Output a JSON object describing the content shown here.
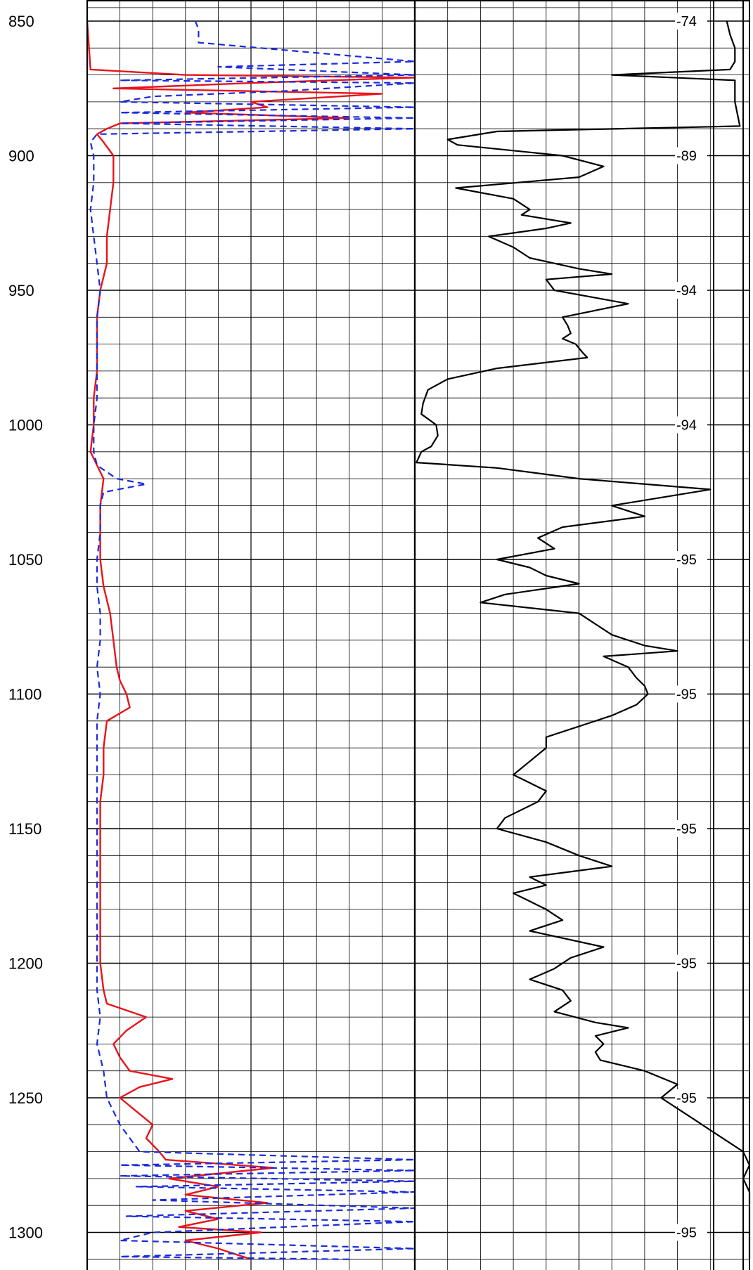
{
  "chart_data": {
    "type": "line",
    "title": "",
    "xlabel": "",
    "ylabel": "",
    "depth_range": [
      850,
      1310
    ],
    "depth_ticks": [
      "850",
      "900",
      "950",
      "1000",
      "1050",
      "1100",
      "1150",
      "1200",
      "1250",
      "1300"
    ],
    "colors": {
      "red_curve": "#e8141b",
      "blue_curve": "#1a2bdc",
      "black_curve": "#000000",
      "grid": "#000000"
    },
    "track1": {
      "grid_columns": 10,
      "series": [
        {
          "style": "red-solid",
          "scale": [
            0,
            10
          ],
          "points": [
            [
              850,
              0
            ],
            [
              868,
              0.1
            ],
            [
              870,
              3
            ],
            [
              871,
              10
            ],
            [
              873,
              5
            ],
            [
              875,
              0.8
            ],
            [
              877,
              9
            ],
            [
              880,
              5
            ],
            [
              882,
              5.5
            ],
            [
              884,
              3
            ],
            [
              886,
              8
            ],
            [
              888,
              1
            ],
            [
              890,
              0.6
            ],
            [
              892,
              0.3
            ],
            [
              895,
              0.5
            ],
            [
              900,
              0.8
            ],
            [
              910,
              0.8
            ],
            [
              920,
              0.7
            ],
            [
              930,
              0.6
            ],
            [
              940,
              0.6
            ],
            [
              950,
              0.4
            ],
            [
              960,
              0.3
            ],
            [
              970,
              0.3
            ],
            [
              980,
              0.3
            ],
            [
              990,
              0.2
            ],
            [
              1000,
              0.2
            ],
            [
              1010,
              0.1
            ],
            [
              1015,
              0.3
            ],
            [
              1020,
              0.5
            ],
            [
              1030,
              0.4
            ],
            [
              1040,
              0.4
            ],
            [
              1050,
              0.4
            ],
            [
              1060,
              0.5
            ],
            [
              1070,
              0.7
            ],
            [
              1080,
              0.8
            ],
            [
              1090,
              0.9
            ],
            [
              1095,
              1
            ],
            [
              1100,
              1.2
            ],
            [
              1105,
              1.3
            ],
            [
              1110,
              0.6
            ],
            [
              1120,
              0.5
            ],
            [
              1130,
              0.5
            ],
            [
              1140,
              0.4
            ],
            [
              1150,
              0.4
            ],
            [
              1160,
              0.4
            ],
            [
              1170,
              0.4
            ],
            [
              1180,
              0.4
            ],
            [
              1190,
              0.4
            ],
            [
              1200,
              0.4
            ],
            [
              1210,
              0.5
            ],
            [
              1215,
              0.6
            ],
            [
              1220,
              1.8
            ],
            [
              1225,
              1.2
            ],
            [
              1230,
              0.8
            ],
            [
              1235,
              1
            ],
            [
              1240,
              1.3
            ],
            [
              1243,
              2.6
            ],
            [
              1246,
              1.6
            ],
            [
              1250,
              1
            ],
            [
              1255,
              1.5
            ],
            [
              1260,
              2
            ],
            [
              1265,
              1.8
            ],
            [
              1270,
              2.2
            ],
            [
              1273,
              2.4
            ],
            [
              1276,
              5.7
            ],
            [
              1280,
              2.5
            ],
            [
              1283,
              4
            ],
            [
              1286,
              3
            ],
            [
              1289,
              5.5
            ],
            [
              1292,
              3
            ],
            [
              1295,
              4
            ],
            [
              1298,
              2.8
            ],
            [
              1300,
              5.3
            ],
            [
              1303,
              3
            ],
            [
              1306,
              4
            ],
            [
              1310,
              5
            ]
          ]
        },
        {
          "style": "blue-dashed",
          "scale": [
            0,
            10
          ],
          "points": [
            [
              850,
              3.3
            ],
            [
              853,
              3.4
            ],
            [
              858,
              3.4
            ],
            [
              865,
              10
            ],
            [
              867,
              4
            ],
            [
              870,
              10
            ],
            [
              872,
              1
            ],
            [
              873,
              10
            ],
            [
              876,
              6
            ],
            [
              878,
              2
            ],
            [
              880,
              1
            ],
            [
              882,
              10
            ],
            [
              884,
              1
            ],
            [
              886,
              10
            ],
            [
              888,
              1
            ],
            [
              890,
              10
            ],
            [
              892,
              0.3
            ],
            [
              895,
              0.1
            ],
            [
              900,
              0.2
            ],
            [
              910,
              0.2
            ],
            [
              920,
              0.1
            ],
            [
              930,
              0.2
            ],
            [
              940,
              0.3
            ],
            [
              950,
              0.4
            ],
            [
              960,
              0.3
            ],
            [
              970,
              0.3
            ],
            [
              980,
              0.3
            ],
            [
              990,
              0.3
            ],
            [
              1000,
              0.2
            ],
            [
              1010,
              0.2
            ],
            [
              1015,
              0.3
            ],
            [
              1020,
              0.9
            ],
            [
              1022,
              1.8
            ],
            [
              1025,
              0.5
            ],
            [
              1030,
              0.4
            ],
            [
              1040,
              0.4
            ],
            [
              1050,
              0.3
            ],
            [
              1060,
              0.3
            ],
            [
              1070,
              0.4
            ],
            [
              1080,
              0.4
            ],
            [
              1090,
              0.3
            ],
            [
              1100,
              0.4
            ],
            [
              1110,
              0.3
            ],
            [
              1120,
              0.3
            ],
            [
              1130,
              0.3
            ],
            [
              1140,
              0.3
            ],
            [
              1150,
              0.3
            ],
            [
              1160,
              0.3
            ],
            [
              1170,
              0.3
            ],
            [
              1180,
              0.3
            ],
            [
              1190,
              0.3
            ],
            [
              1200,
              0.3
            ],
            [
              1210,
              0.3
            ],
            [
              1220,
              0.4
            ],
            [
              1230,
              0.3
            ],
            [
              1240,
              0.5
            ],
            [
              1250,
              0.6
            ],
            [
              1260,
              1
            ],
            [
              1270,
              1.6
            ],
            [
              1273,
              10
            ],
            [
              1275,
              1
            ],
            [
              1277,
              10
            ],
            [
              1279,
              1
            ],
            [
              1281,
              10
            ],
            [
              1283,
              1.5
            ],
            [
              1285,
              10
            ],
            [
              1288,
              2
            ],
            [
              1291,
              10
            ],
            [
              1294,
              1.2
            ],
            [
              1296,
              10
            ],
            [
              1300,
              2
            ],
            [
              1303,
              1
            ],
            [
              1306,
              10
            ],
            [
              1309,
              1
            ],
            [
              1310,
              8
            ]
          ]
        }
      ]
    },
    "track2": {
      "grid_columns": 10,
      "series": [
        {
          "style": "black-solid",
          "scale": [
            0,
            20
          ],
          "points": [
            [
              850,
              19
            ],
            [
              855,
              19.2
            ],
            [
              860,
              19.5
            ],
            [
              865,
              19.5
            ],
            [
              868,
              19.2
            ],
            [
              870,
              12
            ],
            [
              872,
              19.5
            ],
            [
              880,
              19.5
            ],
            [
              889,
              19.8
            ],
            [
              891,
              5
            ],
            [
              894,
              2
            ],
            [
              896,
              2.6
            ],
            [
              900,
              9
            ],
            [
              904,
              11.5
            ],
            [
              908,
              10
            ],
            [
              912,
              2.5
            ],
            [
              916,
              6
            ],
            [
              920,
              7
            ],
            [
              922,
              6.5
            ],
            [
              925,
              9.5
            ],
            [
              927,
              8
            ],
            [
              930,
              4.5
            ],
            [
              934,
              6
            ],
            [
              938,
              7
            ],
            [
              942,
              10
            ],
            [
              944,
              12
            ],
            [
              946,
              8
            ],
            [
              950,
              8.5
            ],
            [
              955,
              13
            ],
            [
              960,
              9
            ],
            [
              963,
              9.3
            ],
            [
              966,
              9.5
            ],
            [
              968,
              9
            ],
            [
              970,
              9.8
            ],
            [
              973,
              10.2
            ],
            [
              975,
              10.5
            ],
            [
              979,
              5
            ],
            [
              983,
              2
            ],
            [
              987,
              0.8
            ],
            [
              992,
              0.5
            ],
            [
              996,
              0.4
            ],
            [
              1000,
              1.3
            ],
            [
              1004,
              1.4
            ],
            [
              1008,
              1
            ],
            [
              1010,
              0.4
            ],
            [
              1014,
              0.1
            ],
            [
              1016,
              5
            ],
            [
              1020,
              10
            ],
            [
              1024,
              18
            ],
            [
              1027,
              15
            ],
            [
              1030,
              12
            ],
            [
              1034,
              14
            ],
            [
              1038,
              9
            ],
            [
              1042,
              7.5
            ],
            [
              1046,
              8.5
            ],
            [
              1050,
              5
            ],
            [
              1053,
              7
            ],
            [
              1056,
              8
            ],
            [
              1059,
              10
            ],
            [
              1063,
              5.5
            ],
            [
              1066,
              4
            ],
            [
              1070,
              10
            ],
            [
              1074,
              11
            ],
            [
              1078,
              12
            ],
            [
              1082,
              14
            ],
            [
              1084,
              16
            ],
            [
              1086,
              11.5
            ],
            [
              1090,
              13
            ],
            [
              1094,
              13.5
            ],
            [
              1097,
              14
            ],
            [
              1100,
              14.2
            ],
            [
              1104,
              13.5
            ],
            [
              1108,
              12
            ],
            [
              1112,
              10
            ],
            [
              1116,
              8
            ],
            [
              1120,
              8
            ],
            [
              1125,
              7
            ],
            [
              1130,
              6
            ],
            [
              1133,
              7
            ],
            [
              1136,
              8
            ],
            [
              1140,
              7.5
            ],
            [
              1143,
              6.5
            ],
            [
              1146,
              5.5
            ],
            [
              1150,
              5
            ],
            [
              1155,
              8
            ],
            [
              1160,
              10
            ],
            [
              1164,
              12
            ],
            [
              1168,
              7
            ],
            [
              1171,
              8
            ],
            [
              1174,
              6
            ],
            [
              1177,
              7
            ],
            [
              1180,
              8
            ],
            [
              1184,
              9
            ],
            [
              1188,
              7
            ],
            [
              1190,
              8.5
            ],
            [
              1194,
              11.5
            ],
            [
              1198,
              9.5
            ],
            [
              1202,
              8.5
            ],
            [
              1206,
              7
            ],
            [
              1210,
              9
            ],
            [
              1214,
              9.5
            ],
            [
              1218,
              8.5
            ],
            [
              1222,
              11
            ],
            [
              1224,
              13
            ],
            [
              1227,
              11
            ],
            [
              1230,
              11.5
            ],
            [
              1233,
              11
            ],
            [
              1236,
              11.3
            ],
            [
              1240,
              14
            ],
            [
              1245,
              16
            ],
            [
              1250,
              15
            ],
            [
              1254,
              16
            ],
            [
              1258,
              17
            ],
            [
              1262,
              18
            ],
            [
              1266,
              19
            ],
            [
              1270,
              20
            ],
            [
              1275,
              21
            ],
            [
              1280,
              20
            ],
            [
              1285,
              21
            ],
            [
              1290,
              21
            ],
            [
              1295,
              21
            ],
            [
              1300,
              21
            ],
            [
              1305,
              21
            ],
            [
              1310,
              21
            ]
          ]
        }
      ]
    },
    "track3": {
      "value_labels": [
        {
          "depth": 850,
          "text": "-74"
        },
        {
          "depth": 900,
          "text": "-89"
        },
        {
          "depth": 950,
          "text": "-94"
        },
        {
          "depth": 1000,
          "text": "-94"
        },
        {
          "depth": 1050,
          "text": "-95"
        },
        {
          "depth": 1100,
          "text": "-95"
        },
        {
          "depth": 1150,
          "text": "-95"
        },
        {
          "depth": 1200,
          "text": "-95"
        },
        {
          "depth": 1250,
          "text": "-95"
        },
        {
          "depth": 1300,
          "text": "-95"
        }
      ]
    }
  }
}
